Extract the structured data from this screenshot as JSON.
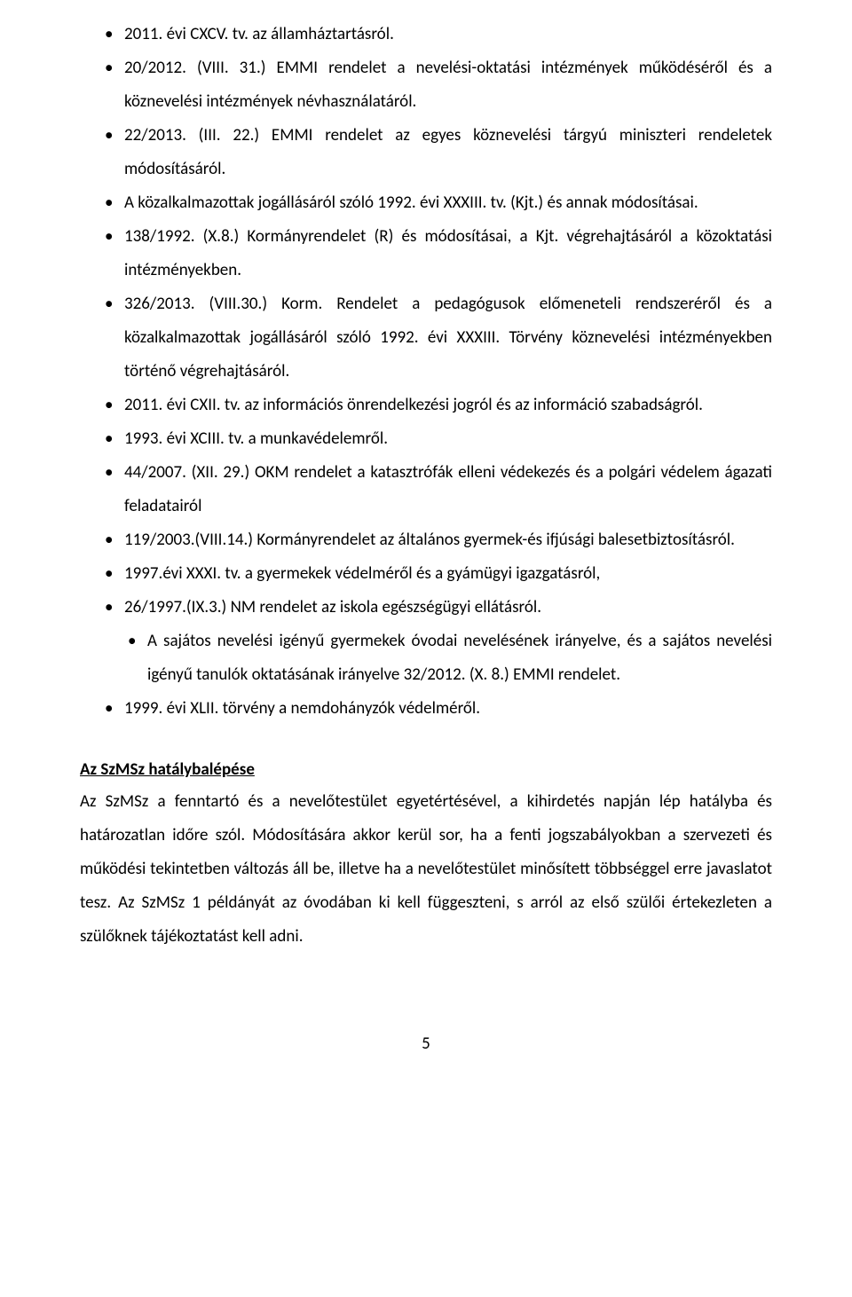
{
  "bullets": [
    "2011. évi CXCV. tv. az államháztartásról.",
    "20/2012. (VIII. 31.) EMMI rendelet a nevelési-oktatási intézmények működéséről és a köznevelési intézmények névhasználatáról.",
    "22/2013. (III. 22.) EMMI rendelet az egyes köznevelési tárgyú miniszteri rendeletek módosításáról.",
    "A közalkalmazottak jogállásáról szóló 1992. évi XXXIII. tv. (Kjt.) és annak módosításai.",
    "138/1992. (X.8.) Kormányrendelet (R) és módosításai, a Kjt. végrehajtásáról a közoktatási intézményekben.",
    "326/2013. (VIII.30.) Korm. Rendelet a pedagógusok előmeneteli rendszeréről és a közalkalmazottak jogállásáról szóló 1992. évi XXXIII. Törvény köznevelési intézményekben történő végrehajtásáról.",
    "2011. évi CXII. tv. az információs önrendelkezési jogról és az információ szabadságról.",
    "1993. évi XCIII. tv. a munkavédelemről.",
    "44/2007. (XII. 29.) OKM rendelet a katasztrófák elleni védekezés és a polgári védelem ágazati feladatairól",
    "119/2003.(VIII.14.) Kormányrendelet az általános gyermek-és ifjúsági balesetbiztosításról.",
    "1997.évi XXXI. tv. a gyermekek védelméről és a gyámügyi igazgatásról,",
    "26/1997.(IX.3.) NM rendelet az iskola egészségügyi ellátásról.",
    "A sajátos nevelési igényű gyermekek óvodai nevelésének irányelve, és a sajátos nevelési igényű tanulók oktatásának irányelve 32/2012. (X. 8.) EMMI rendelet.",
    "1999. évi XLII. törvény a nemdohányzók védelméről."
  ],
  "indent2_indices": [
    12
  ],
  "section_title": "Az SzMSz hatálybalépése",
  "paragraph": "Az SzMSz a fenntartó és a nevelőtestület egyetértésével, a kihirdetés napján lép hatályba és határozatlan időre szól. Módosítására akkor kerül sor, ha a fenti jogszabályokban a szervezeti és működési tekintetben változás áll be, illetve ha a nevelőtestület minősített többséggel erre javaslatot tesz. Az SzMSz 1 példányát az óvodában ki kell függeszteni, s arról az első szülői értekezleten a szülőknek tájékoztatást kell adni.",
  "page_number": "5"
}
